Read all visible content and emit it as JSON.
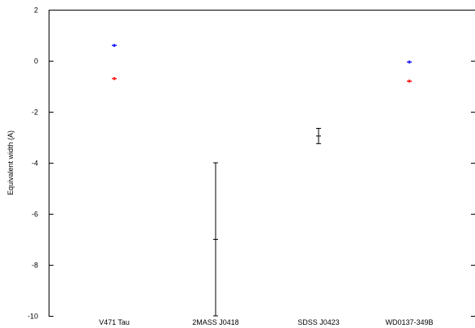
{
  "chart_data": {
    "type": "scatter",
    "title": "",
    "xlabel": "",
    "ylabel": "Equivalent width (A)",
    "ylim": [
      -10,
      2
    ],
    "yticks": [
      2,
      0,
      -2,
      -4,
      -6,
      -8,
      -10
    ],
    "grid": false,
    "legend": "none",
    "categories": [
      "V471 Tau",
      "2MASS J0418",
      "SDSS J0423",
      "WD0137-349B"
    ],
    "series": [
      {
        "color": "#0000ff",
        "marker": "plus",
        "points": [
          {
            "category": "V471 Tau",
            "y": 0.6
          },
          {
            "category": "WD0137-349B",
            "y": -0.05
          }
        ]
      },
      {
        "color": "#ff0000",
        "marker": "plus",
        "points": [
          {
            "category": "V471 Tau",
            "y": -0.7
          },
          {
            "category": "WD0137-349B",
            "y": -0.8
          }
        ]
      },
      {
        "color": "#000000",
        "marker": "errorbar",
        "points": [
          {
            "category": "2MASS J0418",
            "y": -7.0,
            "ylow": -10.0,
            "yhigh": -4.0
          },
          {
            "category": "SDSS J0423",
            "y": -2.95,
            "ylow": -3.25,
            "yhigh": -2.65
          }
        ]
      }
    ]
  }
}
